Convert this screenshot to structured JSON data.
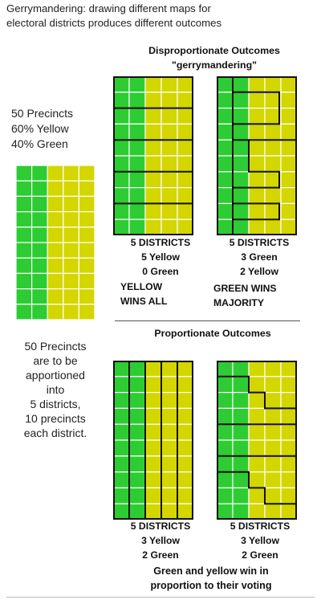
{
  "title_line1": "Gerrymandering: drawing different maps for",
  "title_line2": "electoral districts produces different outcomes",
  "top_heading_line1": "Disproportionate Outcomes",
  "top_heading_line2": "\"gerrymandering\"",
  "left_stats": [
    "50 Precincts",
    "60% Yellow",
    "40% Green"
  ],
  "note_lines": [
    "50 Precincts",
    "are to be",
    "apportioned",
    "into",
    "5 districts,",
    "10 precincts",
    "each district."
  ],
  "map_a_label": [
    "5 DISTRICTS",
    "5 Yellow",
    "0 Green"
  ],
  "map_a_verdict": [
    "YELLOW",
    "WINS ALL"
  ],
  "map_b_label": [
    "5 DISTRICTS",
    "3 Green",
    "2 Yellow"
  ],
  "map_b_verdict": [
    "GREEN WINS",
    "MAJORITY"
  ],
  "bottom_heading": "Proportionate Outcomes",
  "map_c_label": [
    "5 DISTRICTS",
    "3 Yellow",
    "2 Green"
  ],
  "map_d_label": [
    "5 DISTRICTS",
    "3 Yellow",
    "2 Green"
  ],
  "closing_line1": "Green and yellow win in",
  "closing_line2": "proportion to their voting",
  "colors": {
    "green": "#2ecc33",
    "yellow": "#d4d600",
    "border": "#111111",
    "grid": "#ffffff"
  }
}
